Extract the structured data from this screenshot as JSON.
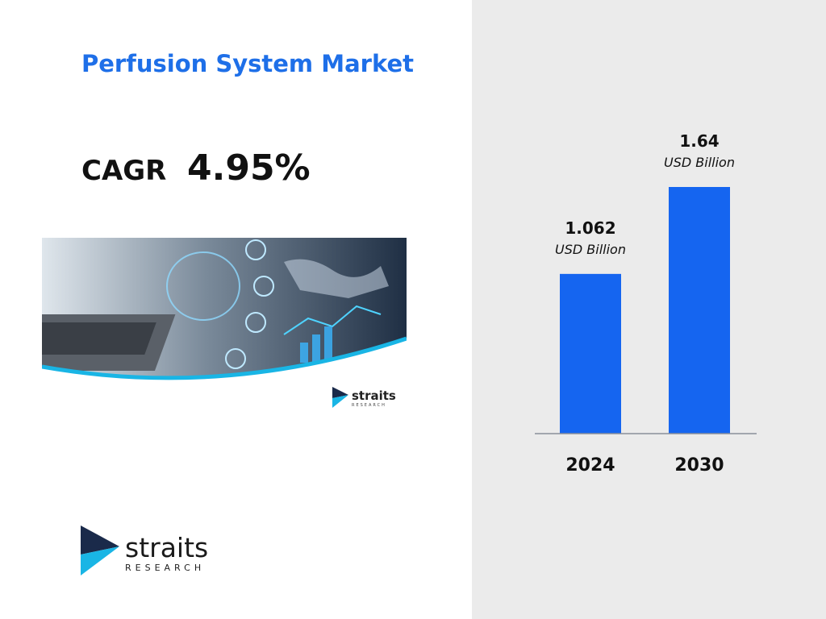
{
  "header": {
    "title": "Perfusion System Market"
  },
  "cagr": {
    "label": "CAGR",
    "value": "4.95%"
  },
  "logo": {
    "name": "straits",
    "sub": "RESEARCH"
  },
  "colors": {
    "accent": "#1e6fe8",
    "bar": "#1565f0",
    "logo_dark": "#1a2a4a",
    "logo_cyan": "#19b5e5"
  },
  "chart_data": {
    "type": "bar",
    "categories": [
      "2024",
      "2030"
    ],
    "values": [
      1.062,
      1.64
    ],
    "value_labels": [
      "1.062",
      "1.64"
    ],
    "unit_label": "USD Billion",
    "title": "",
    "xlabel": "",
    "ylabel": "",
    "ylim": [
      0,
      1.7
    ],
    "grid": false,
    "legend": "none"
  }
}
